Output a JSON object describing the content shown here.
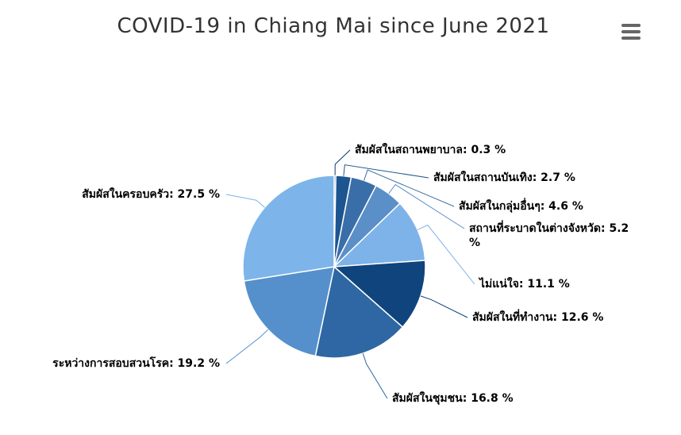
{
  "chart_data": {
    "type": "pie",
    "title": "COVID-19 in Chiang Mai since June 2021",
    "values": [
      0.3,
      2.7,
      4.6,
      5.2,
      11.1,
      12.6,
      16.8,
      19.2,
      27.5
    ],
    "value_labels": [
      "สัมผัสในสถานพยาบาล: 0.3 %",
      "สัมผัสในสถานบันเทิง: 2.7 %",
      "สัมผัสในกลุ่มอื่นๆ: 4.6 %",
      "สถานที่ระบาดในต่างจังหวัด: 5.2 %",
      "ไม่แน่ใจ: 11.1 %",
      "สัมผัสในที่ทำงาน: 12.6 %",
      "สัมผัสในชุมชน: 16.8 %",
      "ระหว่างการสอบสวนโรค: 19.2 %",
      "สัมผัสในครอบครัว: 27.5 %"
    ],
    "colors": [
      "#0c3a6e",
      "#1c5590",
      "#3a6ea8",
      "#5a8fc8",
      "#7eb3e9",
      "#0f447d",
      "#2e67a3",
      "#5590cc",
      "#7db4ea"
    ]
  }
}
